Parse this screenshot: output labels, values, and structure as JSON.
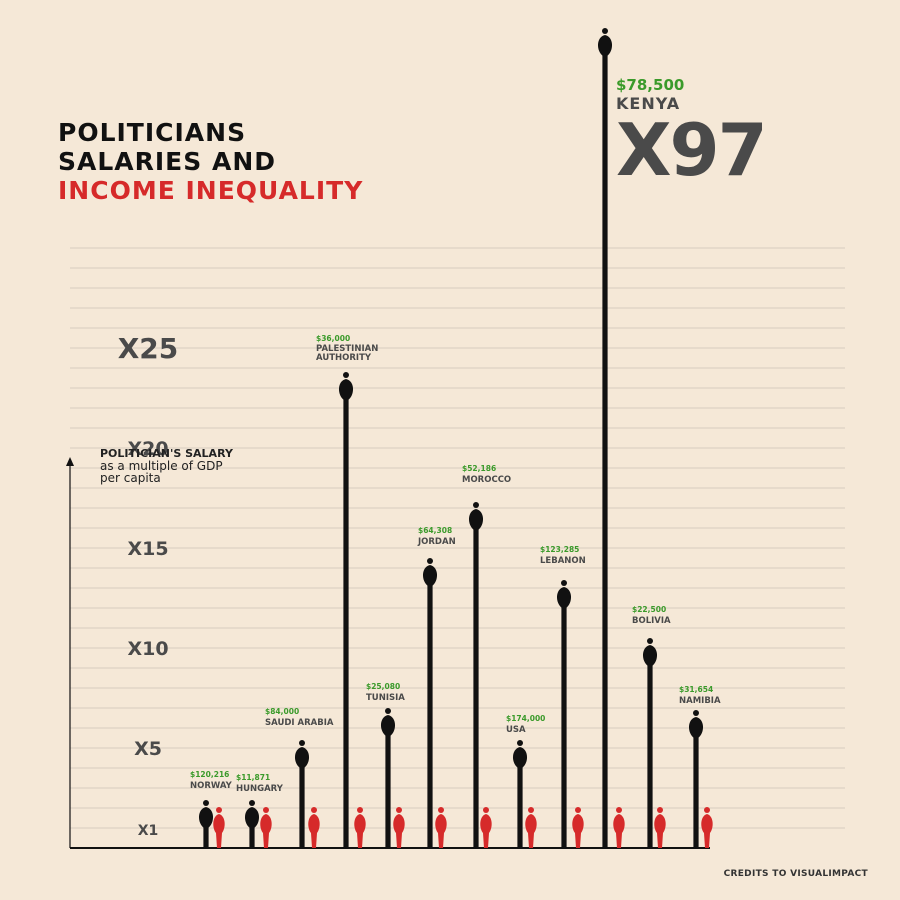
{
  "title": {
    "line1": "POLITICIANS",
    "line2": "SALARIES AND",
    "line3": "INCOME INEQUALITY"
  },
  "axis_title": {
    "bold": "POLITICIAN'S SALARY",
    "sub1": "as a multiple of GDP",
    "sub2": "per capita"
  },
  "credits": "CREDITS TO VISUALIMPACT",
  "highlight": {
    "salary": "$78,500",
    "country": "KENYA",
    "multiple": "X97"
  },
  "colors": {
    "background": "#f5e8d7",
    "politician": "#111111",
    "citizen": "#d62a2a",
    "salary": "#3a9a2a",
    "label": "#4a4a4a",
    "grid": "#d8cdbf"
  },
  "chart_data": {
    "type": "bar",
    "title": "POLITICIANS SALARIES AND INCOME INEQUALITY",
    "ylabel": "POLITICIAN'S SALARY as a multiple of GDP per capita",
    "y_ticks": [
      "X1",
      "X5",
      "X10",
      "X15",
      "X20",
      "X25"
    ],
    "y_tick_values": [
      1,
      5,
      10,
      15,
      20,
      25
    ],
    "categories": [
      "NORWAY",
      "HUNGARY",
      "SAUDI ARABIA",
      "PALESTINIAN AUTHORITY",
      "TUNISIA",
      "JORDAN",
      "MOROCCO",
      "USA",
      "LEBANON",
      "KENYA",
      "BOLIVIA",
      "NAMIBIA"
    ],
    "salaries": [
      "$120,216",
      "$11,871",
      "$84,000",
      "$36,000",
      "$25,080",
      "$64,308",
      "$52,186",
      "$174,000",
      "$123,285",
      "$78,500",
      "$22,500",
      "$31,654"
    ],
    "values": [
      1.4,
      1.4,
      4.4,
      22.5,
      6.0,
      13.0,
      16.0,
      4.3,
      12.0,
      97,
      9.5,
      6.0
    ],
    "grid": true
  }
}
